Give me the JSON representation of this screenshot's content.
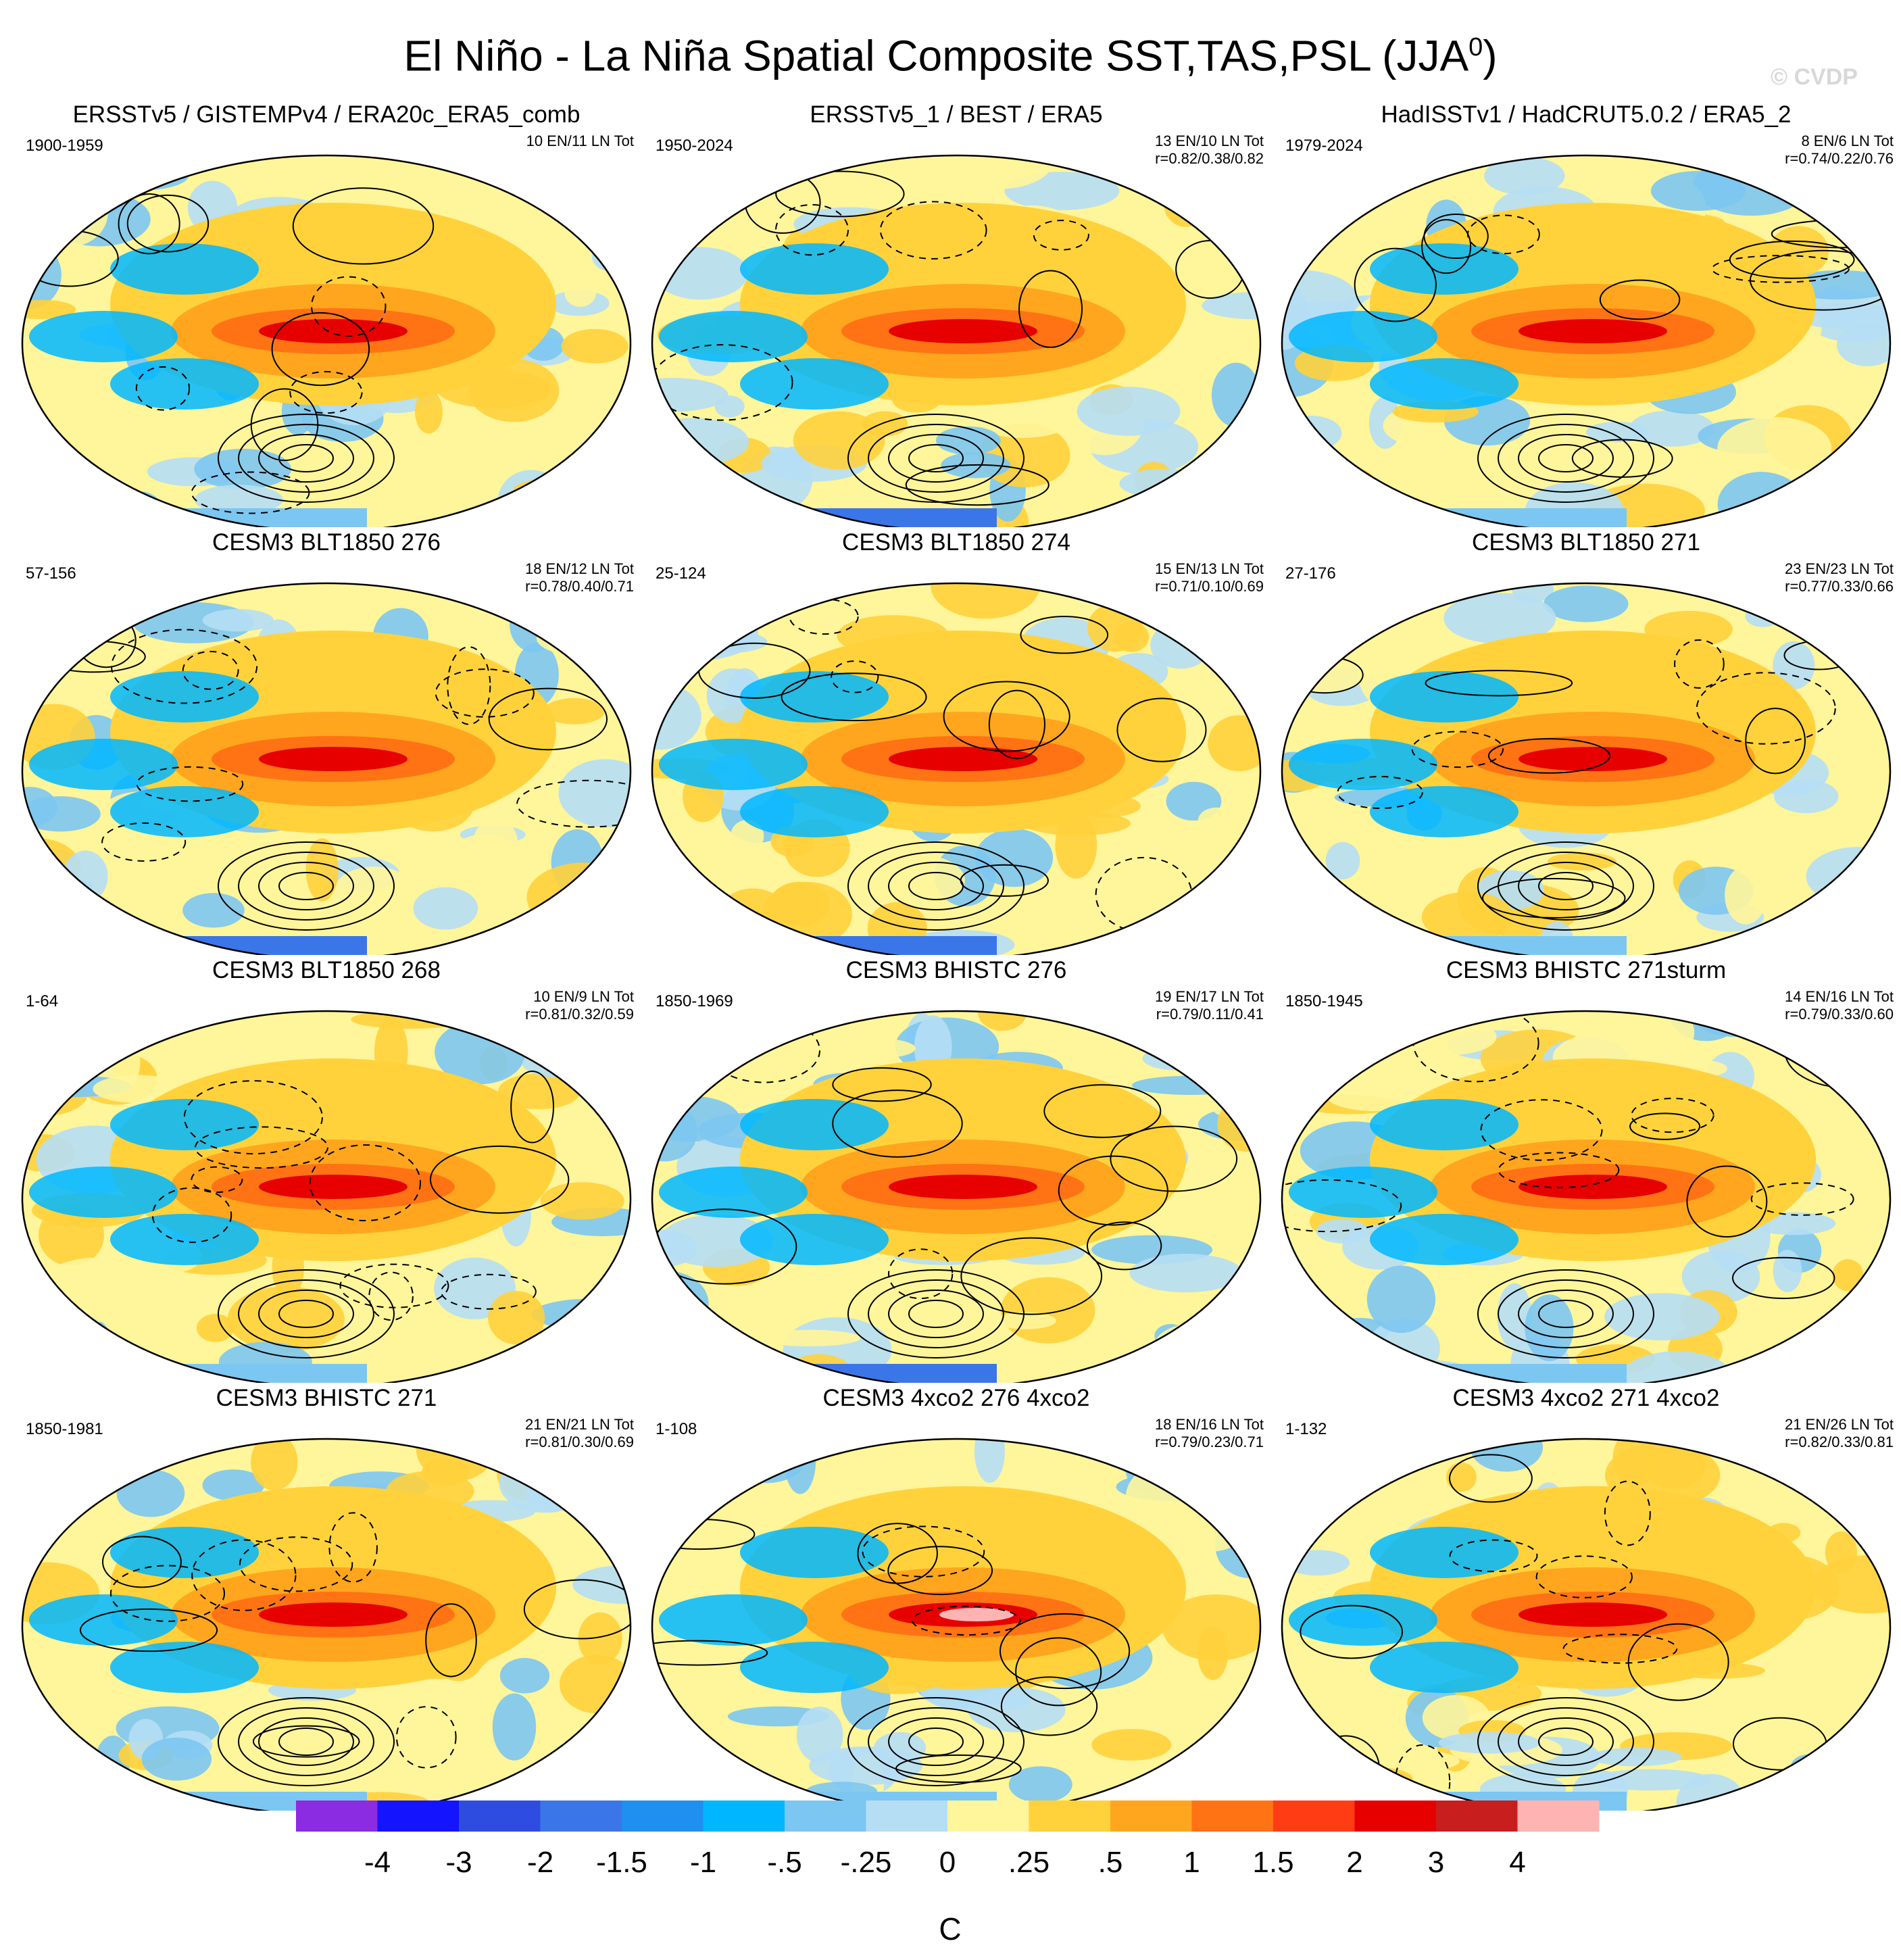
{
  "title": {
    "main": "El Niño - La Niña Spatial Composite SST,TAS,PSL (JJA",
    "sup": "0",
    "close": ")"
  },
  "watermark": "© CVDP",
  "panels": [
    {
      "title": "ERSSTv5 / GISTEMPv4 / ERA20c_ERA5_comb",
      "period": "1900-1959",
      "stats1": "10 EN/11 LN Tot",
      "stats2": ""
    },
    {
      "title": "ERSSTv5_1 / BEST / ERA5",
      "period": "1950-2024",
      "stats1": "13 EN/10 LN Tot",
      "stats2": "r=0.82/0.38/0.82"
    },
    {
      "title": "HadISSTv1 / HadCRUT5.0.2 / ERA5_2",
      "period": "1979-2024",
      "stats1": "8 EN/6 LN Tot",
      "stats2": "r=0.74/0.22/0.76"
    },
    {
      "title": "CESM3 BLT1850 276",
      "period": "57-156",
      "stats1": "18 EN/12 LN Tot",
      "stats2": "r=0.78/0.40/0.71"
    },
    {
      "title": "CESM3 BLT1850 274",
      "period": "25-124",
      "stats1": "15 EN/13 LN Tot",
      "stats2": "r=0.71/0.10/0.69"
    },
    {
      "title": "CESM3 BLT1850 271",
      "period": "27-176",
      "stats1": "23 EN/23 LN Tot",
      "stats2": "r=0.77/0.33/0.66"
    },
    {
      "title": "CESM3 BLT1850 268",
      "period": "1-64",
      "stats1": "10 EN/9 LN Tot",
      "stats2": "r=0.81/0.32/0.59"
    },
    {
      "title": "CESM3 BHISTC 276",
      "period": "1850-1969",
      "stats1": "19 EN/17 LN Tot",
      "stats2": "r=0.79/0.11/0.41"
    },
    {
      "title": "CESM3 BHISTC 271sturm",
      "period": "1850-1945",
      "stats1": "14 EN/16 LN Tot",
      "stats2": "r=0.79/0.33/0.60"
    },
    {
      "title": "CESM3 BHISTC 271",
      "period": "1850-1981",
      "stats1": "21 EN/21 LN Tot",
      "stats2": "r=0.81/0.30/0.69"
    },
    {
      "title": "CESM3 4xco2 276 4xco2",
      "period": "1-108",
      "stats1": "18 EN/16 LN Tot",
      "stats2": "r=0.79/0.23/0.71"
    },
    {
      "title": "CESM3 4xco2 271 4xco2",
      "period": "1-132",
      "stats1": "21 EN/26 LN Tot",
      "stats2": "r=0.82/0.33/0.81"
    }
  ],
  "chart_data": {
    "type": "heatmap",
    "variable": "SST,TAS,PSL composite",
    "season": "JJA0",
    "colorbar": {
      "unit": "C",
      "labels": [
        "-4",
        "-3",
        "-2",
        "-1.5",
        "-1",
        "-.5",
        "-.25",
        "0",
        ".25",
        ".5",
        "1",
        "1.5",
        "2",
        "3",
        "4"
      ],
      "colors": [
        "#8b2be2",
        "#1414ff",
        "#2e4de0",
        "#3b76e8",
        "#1f8ff0",
        "#00b7ff",
        "#7cc6f2",
        "#b5def5",
        "#fff59a",
        "#ffd23c",
        "#ffa61e",
        "#ff7314",
        "#ff3c14",
        "#e60000",
        "#c81e1e",
        "#ffb4b4"
      ]
    }
  }
}
